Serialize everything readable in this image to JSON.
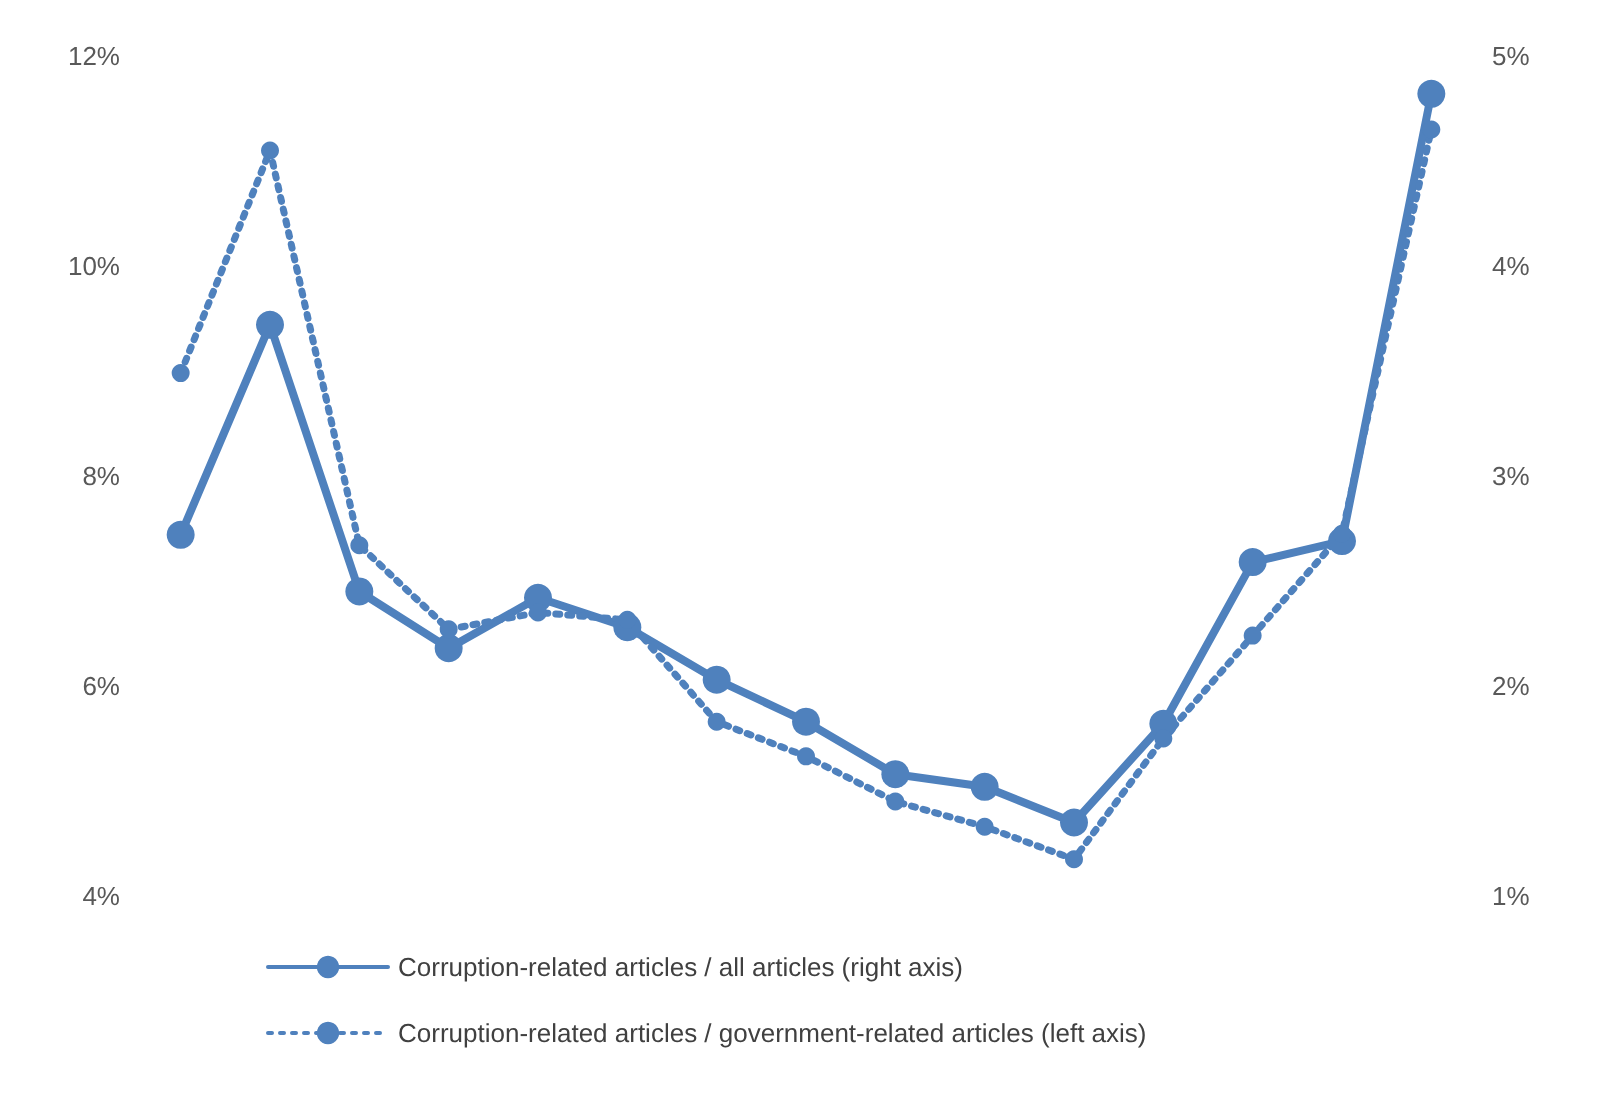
{
  "chart_data": {
    "type": "line",
    "categories": [
      null,
      null,
      null,
      null,
      null,
      null,
      null,
      null,
      null,
      null,
      null,
      null,
      null,
      null,
      null
    ],
    "series": [
      {
        "name": "Corruption-related articles / all articles (right axis)",
        "color": "#4f81bd",
        "axis": "y2",
        "line_style": "solid",
        "values": [
          2.72,
          3.72,
          2.45,
          2.18,
          2.42,
          2.28,
          2.03,
          1.83,
          1.58,
          1.52,
          1.35,
          1.82,
          2.59,
          2.69,
          4.82
        ]
      },
      {
        "name": "Corruption-related articles / government-related articles (left axis)",
        "color": "#4f81bd",
        "line_style": "dotted",
        "values": [
          8.98,
          11.1,
          7.34,
          6.54,
          6.7,
          6.63,
          5.66,
          5.33,
          4.9,
          4.66,
          4.35,
          5.5,
          6.48,
          7.45,
          11.3
        ]
      }
    ],
    "ylim": [
      4,
      12
    ],
    "yticks": [
      {
        "value": 4,
        "label": "4%"
      },
      {
        "value": 6,
        "label": "6%"
      },
      {
        "value": 8,
        "label": "8%"
      },
      {
        "value": 10,
        "label": "10%"
      },
      {
        "value": 12,
        "label": "12%"
      }
    ],
    "y2lim": [
      1,
      5
    ],
    "y2ticks": [
      {
        "value": 1,
        "label": "1%"
      },
      {
        "value": 2,
        "label": "2%"
      },
      {
        "value": 3,
        "label": "3%"
      },
      {
        "value": 4,
        "label": "4%"
      },
      {
        "value": 5,
        "label": "5%"
      }
    ],
    "grid": false,
    "legend": "bottom",
    "marker": "circle"
  }
}
